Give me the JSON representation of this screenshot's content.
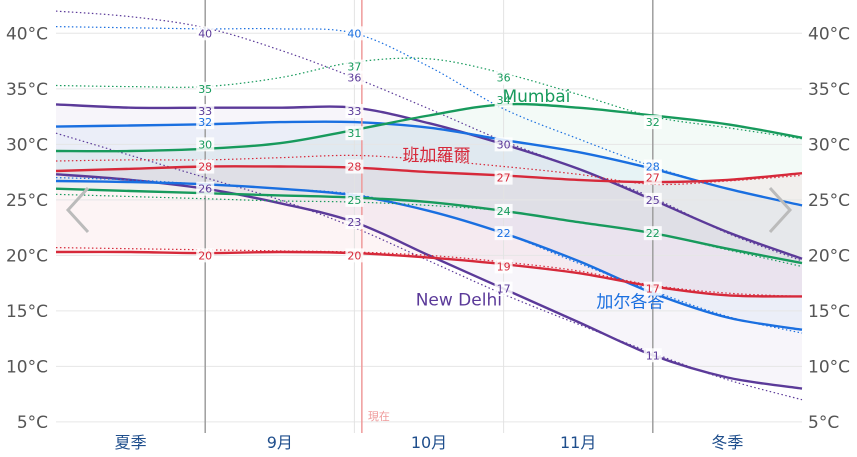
{
  "chart_data": {
    "type": "line",
    "y_ticks": [
      "40°C",
      "35°C",
      "30°C",
      "25°C",
      "20°C",
      "15°C",
      "10°C",
      "5°C"
    ],
    "y_tick_values": [
      40,
      35,
      30,
      25,
      20,
      15,
      10,
      5
    ],
    "ylim": [
      4,
      43
    ],
    "period_labels": [
      "夏季",
      "9月",
      "10月",
      "11月",
      "冬季"
    ],
    "now_label": "現在",
    "now_position": 2.05,
    "x_extent": [
      0,
      5
    ],
    "grid": true,
    "colors": {
      "delhi": "#5b3a99",
      "kolkata": "#1a6fe0",
      "mumbai": "#179a5c",
      "bengaluru": "#d6293a",
      "now": "#ef9a9a"
    },
    "series": [
      {
        "key": "delhi",
        "name": "New Delhi",
        "color": "#5b3a99",
        "high": {
          "x": [
            0,
            0.5,
            1,
            1.5,
            2,
            2.5,
            3,
            3.5,
            4,
            4.5,
            5
          ],
          "y": [
            33.6,
            33.3,
            33.3,
            33.3,
            33.3,
            31.9,
            30,
            27.8,
            25,
            22.1,
            19.7
          ]
        },
        "low": {
          "x": [
            0,
            0.5,
            1,
            1.5,
            2,
            2.5,
            3,
            3.5,
            4,
            4.5,
            5
          ],
          "y": [
            27.3,
            26.8,
            26,
            24.7,
            23,
            20,
            17,
            14,
            11,
            9,
            8
          ]
        },
        "record_high": {
          "x": [
            0,
            0.5,
            1,
            1.5,
            2,
            2.5,
            3,
            3.5,
            4,
            4.5,
            5
          ],
          "y": [
            42,
            41.5,
            40.5,
            38.5,
            36,
            33.2,
            30.3,
            27.8,
            25.2,
            22,
            19.5
          ]
        },
        "record_low": {
          "x": [
            0,
            0.5,
            1,
            1.5,
            2,
            2.5,
            3,
            3.5,
            4,
            4.5,
            5
          ],
          "y": [
            31,
            29,
            27,
            25,
            22.5,
            19.5,
            16.5,
            13.8,
            11.2,
            8.8,
            7
          ]
        },
        "labels": [
          {
            "x": 1,
            "y": 40,
            "text": "40"
          },
          {
            "x": 1,
            "y": 33,
            "text": "33"
          },
          {
            "x": 1,
            "y": 26,
            "text": "26"
          },
          {
            "x": 2,
            "y": 36,
            "text": "36"
          },
          {
            "x": 2,
            "y": 33,
            "text": "33"
          },
          {
            "x": 2,
            "y": 23,
            "text": "23"
          },
          {
            "x": 3,
            "y": 30,
            "text": "30"
          },
          {
            "x": 3,
            "y": 17,
            "text": "17"
          },
          {
            "x": 4,
            "y": 25,
            "text": "25"
          },
          {
            "x": 4,
            "y": 11,
            "text": "11"
          }
        ],
        "name_pos": {
          "x": 2.7,
          "y": 15.5
        }
      },
      {
        "key": "kolkata",
        "name": "加尔各答",
        "color": "#1a6fe0",
        "high": {
          "x": [
            0,
            0.5,
            1,
            1.5,
            2,
            2.5,
            3,
            3.5,
            4,
            4.5,
            5
          ],
          "y": [
            31.6,
            31.7,
            31.8,
            32,
            32,
            31.5,
            30.4,
            29.3,
            27.8,
            26,
            24.5
          ]
        },
        "low": {
          "x": [
            0,
            0.5,
            1,
            1.5,
            2,
            2.5,
            3,
            3.5,
            4,
            4.5,
            5
          ],
          "y": [
            26.7,
            26.6,
            26.4,
            26,
            25.4,
            24,
            22,
            19.5,
            16.6,
            14.4,
            13.3
          ]
        },
        "record_high": {
          "x": [
            0,
            0.5,
            1,
            1.5,
            2,
            2.5,
            3,
            3.5,
            4,
            4.5,
            5
          ],
          "y": [
            40.6,
            40.5,
            40.4,
            40.4,
            40,
            37,
            33.2,
            30.5,
            28,
            26,
            24.5
          ]
        },
        "record_low": {
          "x": [
            0,
            0.5,
            1,
            1.5,
            2,
            2.5,
            3,
            3.5,
            4,
            4.5,
            5
          ],
          "y": [
            27,
            26.8,
            26.4,
            26,
            25.5,
            24,
            22,
            19.3,
            16.8,
            14.5,
            13
          ]
        },
        "labels": [
          {
            "x": 1,
            "y": 32,
            "text": "32"
          },
          {
            "x": 2,
            "y": 40,
            "text": "40"
          },
          {
            "x": 3,
            "y": 22,
            "text": "22"
          },
          {
            "x": 4,
            "y": 28,
            "text": "28"
          }
        ],
        "name_pos": {
          "x": 3.85,
          "y": 15.3
        }
      },
      {
        "key": "mumbai",
        "name": "Mumbai",
        "color": "#179a5c",
        "high": {
          "x": [
            0,
            0.5,
            1,
            1.5,
            2,
            2.5,
            3,
            3.5,
            4,
            4.5,
            5
          ],
          "y": [
            29.4,
            29.4,
            29.6,
            30.1,
            31.3,
            32.6,
            33.6,
            33.3,
            32.6,
            31.8,
            30.6
          ]
        },
        "low": {
          "x": [
            0,
            0.5,
            1,
            1.5,
            2,
            2.5,
            3,
            3.5,
            4,
            4.5,
            5
          ],
          "y": [
            26,
            25.8,
            25.6,
            25.4,
            25.2,
            24.8,
            24,
            23,
            22,
            20.6,
            19.3
          ]
        },
        "record_high": {
          "x": [
            0,
            0.5,
            1,
            1.5,
            2,
            2.5,
            3,
            3.5,
            4,
            4.5,
            5
          ],
          "y": [
            35.3,
            35.2,
            35.2,
            36,
            37.4,
            37.7,
            36.4,
            34.5,
            32.5,
            31.5,
            30.5
          ]
        },
        "record_low": {
          "x": [
            0,
            0.5,
            1,
            1.5,
            2,
            2.5,
            3,
            3.5,
            4,
            4.5,
            5
          ],
          "y": [
            25.5,
            25.3,
            25.1,
            24.9,
            24.8,
            24.5,
            24,
            23,
            22,
            20.5,
            19
          ]
        },
        "labels": [
          {
            "x": 1,
            "y": 35,
            "text": "35"
          },
          {
            "x": 1,
            "y": 30,
            "text": "30"
          },
          {
            "x": 2,
            "y": 37,
            "text": "37"
          },
          {
            "x": 2,
            "y": 31,
            "text": "31"
          },
          {
            "x": 2,
            "y": 25,
            "text": "25"
          },
          {
            "x": 3,
            "y": 36,
            "text": "36"
          },
          {
            "x": 3,
            "y": 34,
            "text": "34"
          },
          {
            "x": 3,
            "y": 24,
            "text": "24"
          },
          {
            "x": 4,
            "y": 32,
            "text": "32"
          },
          {
            "x": 4,
            "y": 22,
            "text": "22"
          }
        ],
        "name_pos": {
          "x": 3.22,
          "y": 33.8
        }
      },
      {
        "key": "bengaluru",
        "name": "班加羅爾",
        "color": "#d6293a",
        "high": {
          "x": [
            0,
            0.5,
            1,
            1.5,
            2,
            2.5,
            3,
            3.5,
            4,
            4.5,
            5
          ],
          "y": [
            27.6,
            27.8,
            28,
            28,
            27.9,
            27.5,
            27.2,
            26.8,
            26.6,
            26.8,
            27.4
          ]
        },
        "low": {
          "x": [
            0,
            0.5,
            1,
            1.5,
            2,
            2.5,
            3,
            3.5,
            4,
            4.5,
            5
          ],
          "y": [
            20.3,
            20.3,
            20.2,
            20.3,
            20.2,
            19.8,
            19.2,
            18.4,
            17.2,
            16.4,
            16.3
          ]
        },
        "record_high": {
          "x": [
            0,
            0.5,
            1,
            1.5,
            2,
            2.5,
            3,
            3.5,
            4,
            4.5,
            5
          ],
          "y": [
            28.5,
            28.6,
            28.6,
            28.8,
            29,
            28.6,
            28,
            27.3,
            26.4,
            26.7,
            27.2
          ]
        },
        "record_low": {
          "x": [
            0,
            0.5,
            1,
            1.5,
            2,
            2.5,
            3,
            3.5,
            4,
            4.5,
            5
          ],
          "y": [
            20.7,
            20.6,
            20.5,
            20.4,
            20.3,
            20,
            19.4,
            18.6,
            17.3,
            16.6,
            16.3
          ]
        },
        "labels": [
          {
            "x": 1,
            "y": 28,
            "text": "28"
          },
          {
            "x": 1,
            "y": 20,
            "text": "20"
          },
          {
            "x": 2,
            "y": 28,
            "text": "28"
          },
          {
            "x": 2,
            "y": 20,
            "text": "20"
          },
          {
            "x": 3,
            "y": 27,
            "text": "27"
          },
          {
            "x": 3,
            "y": 19,
            "text": "19"
          },
          {
            "x": 4,
            "y": 27,
            "text": "27"
          },
          {
            "x": 4,
            "y": 17,
            "text": "17"
          }
        ],
        "name_pos": {
          "x": 2.55,
          "y": 28.5
        }
      }
    ],
    "nav": {
      "prev_icon": "chevron-left-icon",
      "next_icon": "chevron-right-icon"
    }
  }
}
